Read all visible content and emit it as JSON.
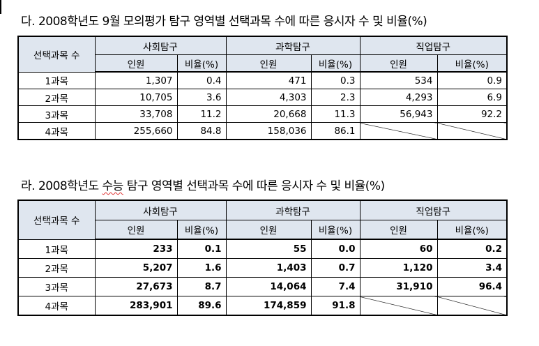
{
  "table1": {
    "title": "다. 2008학년도 9월 모의평가 탐구 영역별 선택과목 수에 따른 응시자 수 및 비율(%)",
    "corner_label": "선택과목 수",
    "groups": [
      "사회탐구",
      "과학탐구",
      "직업탐구"
    ],
    "subheaders": [
      "인원",
      "비율(%)",
      "인원",
      "비율(%)",
      "인원",
      "비율(%)"
    ],
    "rows": [
      {
        "label": "1과목",
        "cells": [
          "1,307",
          "0.4",
          "471",
          "0.3",
          "534",
          "0.9"
        ]
      },
      {
        "label": "2과목",
        "cells": [
          "10,705",
          "3.6",
          "4,303",
          "2.3",
          "4,293",
          "6.9"
        ]
      },
      {
        "label": "3과목",
        "cells": [
          "33,708",
          "11.2",
          "20,668",
          "11.3",
          "56,943",
          "92.2"
        ]
      },
      {
        "label": "4과목",
        "cells": [
          "255,660",
          "84.8",
          "158,036",
          "86.1",
          "",
          ""
        ]
      }
    ]
  },
  "table2": {
    "title_prefix": "라. 2008학년도 ",
    "title_underlined": "수능",
    "title_suffix": " 탐구 영역별 선택과목 수에 따른 응시자 수 및 비율(%)",
    "corner_label": "선택과목 수",
    "groups": [
      "사회탐구",
      "과학탐구",
      "직업탐구"
    ],
    "subheaders": [
      "인원",
      "비율(%)",
      "인원",
      "비율(%)",
      "인원",
      "비율(%)"
    ],
    "rows": [
      {
        "label": "1과목",
        "cells": [
          "233",
          "0.1",
          "55",
          "0.0",
          "60",
          "0.2"
        ]
      },
      {
        "label": "2과목",
        "cells": [
          "5,207",
          "1.6",
          "1,403",
          "0.7",
          "1,120",
          "3.4"
        ]
      },
      {
        "label": "3과목",
        "cells": [
          "27,673",
          "8.7",
          "14,064",
          "7.4",
          "31,910",
          "96.4"
        ]
      },
      {
        "label": "4과목",
        "cells": [
          "283,901",
          "89.6",
          "174,859",
          "91.8",
          "",
          ""
        ]
      }
    ]
  }
}
